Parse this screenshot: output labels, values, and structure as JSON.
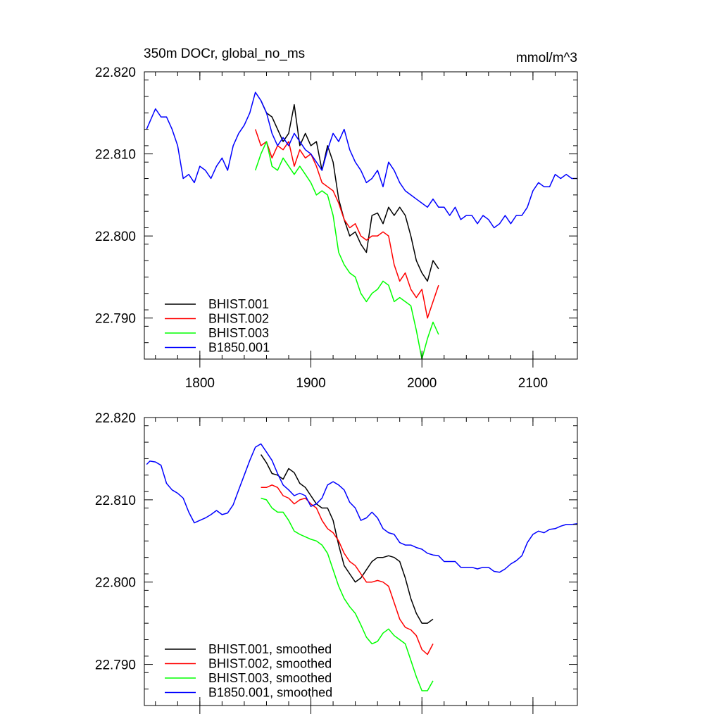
{
  "chart_data": [
    {
      "type": "line",
      "title": "350m DOCr, global_no_ms",
      "units": "mmol/m^3",
      "xlim": [
        1750,
        2140
      ],
      "ylim": [
        22.785,
        22.82
      ],
      "xticks": [
        1800,
        1900,
        2000,
        2100
      ],
      "xtick_labels": [
        "1800",
        "1900",
        "2000",
        "2100"
      ],
      "yticks": [
        22.79,
        22.8,
        22.81,
        22.82
      ],
      "ytick_labels": [
        "22.790",
        "22.800",
        "22.810",
        "22.820"
      ],
      "legend": "bottom-left",
      "series": [
        {
          "name": "BHIST.001",
          "color": "#000000",
          "x": [
            1855,
            1860,
            1865,
            1870,
            1875,
            1880,
            1885,
            1890,
            1895,
            1900,
            1905,
            1910,
            1915,
            1920,
            1925,
            1930,
            1935,
            1940,
            1945,
            1950,
            1955,
            1960,
            1965,
            1970,
            1975,
            1980,
            1985,
            1990,
            1995,
            2000,
            2005,
            2010,
            2015
          ],
          "y": [
            22.8165,
            22.815,
            22.8145,
            22.813,
            22.8115,
            22.8125,
            22.816,
            22.811,
            22.8125,
            22.811,
            22.8115,
            22.808,
            22.811,
            22.809,
            22.8045,
            22.802,
            22.8,
            22.8005,
            22.799,
            22.798,
            22.8025,
            22.8028,
            22.8015,
            22.8035,
            22.8025,
            22.8035,
            22.8025,
            22.8,
            22.797,
            22.7955,
            22.7945,
            22.797,
            22.796
          ]
        },
        {
          "name": "BHIST.002",
          "color": "#ff0000",
          "x": [
            1850,
            1855,
            1860,
            1865,
            1870,
            1875,
            1880,
            1885,
            1890,
            1895,
            1900,
            1905,
            1910,
            1915,
            1920,
            1925,
            1930,
            1935,
            1940,
            1945,
            1950,
            1955,
            1960,
            1965,
            1970,
            1975,
            1980,
            1985,
            1990,
            1995,
            2000,
            2005,
            2010,
            2015
          ],
          "y": [
            22.813,
            22.811,
            22.8115,
            22.8095,
            22.811,
            22.8105,
            22.8115,
            22.8085,
            22.8105,
            22.8095,
            22.81,
            22.8085,
            22.8065,
            22.806,
            22.8055,
            22.804,
            22.802,
            22.801,
            22.8015,
            22.8,
            22.7995,
            22.8,
            22.8,
            22.8005,
            22.8,
            22.7965,
            22.7945,
            22.7955,
            22.7935,
            22.7925,
            22.7935,
            22.79,
            22.792,
            22.794
          ]
        },
        {
          "name": "BHIST.003",
          "color": "#00ff00",
          "x": [
            1850,
            1855,
            1860,
            1865,
            1870,
            1875,
            1880,
            1885,
            1890,
            1895,
            1900,
            1905,
            1910,
            1915,
            1920,
            1925,
            1930,
            1935,
            1940,
            1945,
            1950,
            1955,
            1960,
            1965,
            1970,
            1975,
            1980,
            1985,
            1990,
            1995,
            2000,
            2005,
            2010,
            2015
          ],
          "y": [
            22.808,
            22.81,
            22.8115,
            22.8085,
            22.808,
            22.8095,
            22.8085,
            22.8075,
            22.8085,
            22.8075,
            22.8065,
            22.805,
            22.8055,
            22.805,
            22.8025,
            22.798,
            22.7965,
            22.7955,
            22.795,
            22.793,
            22.792,
            22.793,
            22.7935,
            22.7945,
            22.794,
            22.792,
            22.7925,
            22.792,
            22.7915,
            22.7885,
            22.785,
            22.7875,
            22.7895,
            22.788
          ]
        },
        {
          "name": "B1850.001",
          "color": "#0000ff",
          "x": [
            1752,
            1760,
            1765,
            1770,
            1775,
            1780,
            1785,
            1790,
            1795,
            1800,
            1805,
            1810,
            1815,
            1820,
            1825,
            1830,
            1835,
            1840,
            1845,
            1850,
            1855,
            1860,
            1865,
            1870,
            1875,
            1880,
            1885,
            1890,
            1895,
            1900,
            1905,
            1910,
            1915,
            1920,
            1925,
            1930,
            1935,
            1940,
            1945,
            1950,
            1955,
            1960,
            1965,
            1970,
            1975,
            1980,
            1985,
            1990,
            1995,
            2000,
            2005,
            2010,
            2015,
            2020,
            2025,
            2030,
            2035,
            2040,
            2045,
            2050,
            2055,
            2060,
            2065,
            2070,
            2075,
            2080,
            2085,
            2090,
            2095,
            2100,
            2105,
            2110,
            2115,
            2120,
            2125,
            2130,
            2135,
            2140
          ],
          "y": [
            22.813,
            22.8155,
            22.8145,
            22.8145,
            22.813,
            22.811,
            22.807,
            22.8075,
            22.8065,
            22.8085,
            22.808,
            22.807,
            22.8085,
            22.8095,
            22.808,
            22.811,
            22.8125,
            22.8135,
            22.815,
            22.8175,
            22.8165,
            22.815,
            22.8125,
            22.811,
            22.812,
            22.811,
            22.8125,
            22.8115,
            22.8105,
            22.81,
            22.809,
            22.808,
            22.8105,
            22.8125,
            22.8115,
            22.813,
            22.8105,
            22.809,
            22.808,
            22.8065,
            22.807,
            22.808,
            22.806,
            22.809,
            22.808,
            22.8065,
            22.8055,
            22.805,
            22.8045,
            22.804,
            22.8035,
            22.8045,
            22.8035,
            22.8035,
            22.8025,
            22.8035,
            22.802,
            22.8025,
            22.8025,
            22.8015,
            22.8025,
            22.802,
            22.801,
            22.8015,
            22.8025,
            22.8015,
            22.8025,
            22.8025,
            22.8035,
            22.8055,
            22.8065,
            22.806,
            22.806,
            22.8075,
            22.807,
            22.8075,
            22.807,
            22.807
          ]
        }
      ]
    },
    {
      "type": "line",
      "title": "",
      "units": "",
      "xlim": [
        1750,
        2140
      ],
      "ylim": [
        22.785,
        22.82
      ],
      "xticks": [
        1800,
        1900,
        2000,
        2100
      ],
      "xtick_labels": [],
      "yticks": [
        22.79,
        22.8,
        22.81,
        22.82
      ],
      "ytick_labels": [
        "22.790",
        "22.800",
        "22.810",
        "22.820"
      ],
      "legend": "bottom-left",
      "series": [
        {
          "name": "BHIST.001, smoothed",
          "color": "#000000",
          "x": [
            1855,
            1860,
            1865,
            1870,
            1875,
            1880,
            1885,
            1890,
            1895,
            1900,
            1905,
            1910,
            1915,
            1920,
            1925,
            1930,
            1935,
            1940,
            1945,
            1950,
            1955,
            1960,
            1965,
            1970,
            1975,
            1980,
            1985,
            1990,
            1995,
            2000,
            2005,
            2010
          ],
          "y": [
            22.8155,
            22.8145,
            22.8132,
            22.813,
            22.8125,
            22.8138,
            22.8133,
            22.812,
            22.8115,
            22.8105,
            22.8095,
            22.809,
            22.809,
            22.8075,
            22.8045,
            22.802,
            22.801,
            22.8,
            22.8005,
            22.8015,
            22.8025,
            22.803,
            22.803,
            22.8032,
            22.803,
            22.8025,
            22.8005,
            22.798,
            22.7962,
            22.795,
            22.795,
            22.7955
          ]
        },
        {
          "name": "BHIST.002, smoothed",
          "color": "#ff0000",
          "x": [
            1855,
            1860,
            1865,
            1870,
            1875,
            1880,
            1885,
            1890,
            1895,
            1900,
            1905,
            1910,
            1915,
            1920,
            1925,
            1930,
            1935,
            1940,
            1945,
            1950,
            1955,
            1960,
            1965,
            1970,
            1975,
            1980,
            1985,
            1990,
            1995,
            2000,
            2005,
            2010
          ],
          "y": [
            22.8115,
            22.8115,
            22.8118,
            22.8115,
            22.8105,
            22.8102,
            22.8095,
            22.81,
            22.8102,
            22.8095,
            22.809,
            22.8075,
            22.8065,
            22.806,
            22.805,
            22.8035,
            22.8025,
            22.802,
            22.801,
            22.8,
            22.8,
            22.8002,
            22.8,
            22.7995,
            22.7975,
            22.7955,
            22.7945,
            22.7942,
            22.7935,
            22.7918,
            22.7912,
            22.7925
          ]
        },
        {
          "name": "BHIST.003, smoothed",
          "color": "#00ff00",
          "x": [
            1855,
            1860,
            1865,
            1870,
            1875,
            1880,
            1885,
            1890,
            1895,
            1900,
            1905,
            1910,
            1915,
            1920,
            1925,
            1930,
            1935,
            1940,
            1945,
            1950,
            1955,
            1960,
            1965,
            1970,
            1975,
            1980,
            1985,
            1990,
            1995,
            2000,
            2005,
            2010
          ],
          "y": [
            22.8102,
            22.81,
            22.809,
            22.8085,
            22.8085,
            22.8075,
            22.8062,
            22.8058,
            22.8055,
            22.8052,
            22.805,
            22.8045,
            22.8035,
            22.8015,
            22.7995,
            22.798,
            22.797,
            22.7962,
            22.7948,
            22.7933,
            22.7925,
            22.7928,
            22.7938,
            22.7943,
            22.7935,
            22.793,
            22.7925,
            22.7905,
            22.7885,
            22.7868,
            22.7868,
            22.788
          ]
        },
        {
          "name": "B1850.001, smoothed",
          "color": "#0000ff",
          "x": [
            1752,
            1755,
            1760,
            1765,
            1770,
            1775,
            1780,
            1785,
            1790,
            1795,
            1800,
            1805,
            1810,
            1815,
            1820,
            1825,
            1830,
            1835,
            1840,
            1845,
            1850,
            1855,
            1860,
            1865,
            1870,
            1875,
            1880,
            1885,
            1890,
            1895,
            1900,
            1905,
            1910,
            1915,
            1920,
            1925,
            1930,
            1935,
            1940,
            1945,
            1950,
            1955,
            1960,
            1965,
            1970,
            1975,
            1980,
            1985,
            1990,
            1995,
            2000,
            2005,
            2010,
            2015,
            2020,
            2025,
            2030,
            2035,
            2040,
            2045,
            2050,
            2055,
            2060,
            2065,
            2070,
            2075,
            2080,
            2085,
            2090,
            2095,
            2100,
            2105,
            2110,
            2115,
            2120,
            2125,
            2130,
            2135,
            2140
          ],
          "y": [
            22.8143,
            22.8147,
            22.8146,
            22.8142,
            22.812,
            22.8112,
            22.8108,
            22.8102,
            22.8085,
            22.8072,
            22.8075,
            22.8078,
            22.8082,
            22.8087,
            22.8082,
            22.8084,
            22.8094,
            22.8112,
            22.813,
            22.8148,
            22.8164,
            22.8168,
            22.8158,
            22.8148,
            22.8132,
            22.8118,
            22.8112,
            22.8105,
            22.8108,
            22.8105,
            22.8092,
            22.8095,
            22.8102,
            22.8118,
            22.8122,
            22.8118,
            22.8112,
            22.8097,
            22.809,
            22.8075,
            22.8078,
            22.8085,
            22.8078,
            22.8065,
            22.806,
            22.8058,
            22.8048,
            22.8045,
            22.8045,
            22.8042,
            22.804,
            22.8035,
            22.8033,
            22.8032,
            22.8025,
            22.8025,
            22.8025,
            22.8018,
            22.8018,
            22.8018,
            22.8016,
            22.8018,
            22.8018,
            22.8013,
            22.8012,
            22.8016,
            22.8022,
            22.8026,
            22.8032,
            22.8048,
            22.8058,
            22.8062,
            22.806,
            22.8064,
            22.8065,
            22.8068,
            22.807,
            22.807,
            22.8071
          ]
        }
      ]
    }
  ]
}
